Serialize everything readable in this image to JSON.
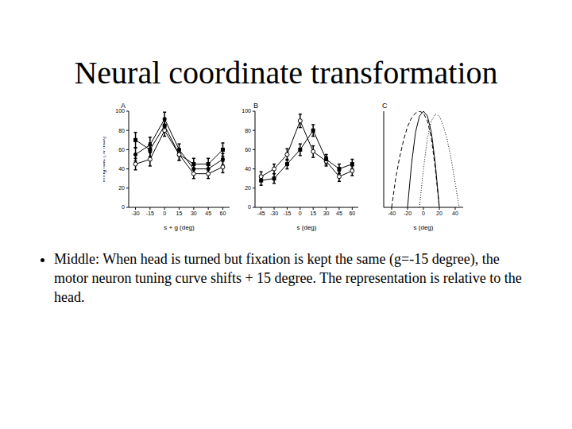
{
  "title": "Neural coordinate transformation",
  "chart_data": [
    {
      "type": "line",
      "title": "A",
      "x_label": "s + g (deg)",
      "y_label": "firing rate (% max)",
      "x": [
        -30,
        -15,
        0,
        15,
        30,
        45,
        60
      ],
      "xlim": [
        -37,
        67
      ],
      "xticks": [
        -30,
        -15,
        0,
        15,
        30,
        45,
        60
      ],
      "ylim": [
        0,
        100
      ],
      "yticks": [
        0,
        20,
        40,
        60,
        80,
        100
      ],
      "series": [
        {
          "color": "#000000",
          "marker": "square",
          "line_style": "solid",
          "values": [
            70,
            60,
            85,
            55,
            45,
            45,
            60
          ],
          "error": [
            8,
            7,
            6,
            6,
            6,
            6,
            7
          ]
        },
        {
          "color": "#000000",
          "marker": "circle",
          "line_style": "solid",
          "values": [
            55,
            65,
            92,
            60,
            40,
            40,
            50
          ],
          "error": [
            7,
            8,
            7,
            6,
            6,
            6,
            6
          ]
        },
        {
          "color": "#000000",
          "marker": "open_circle",
          "line_style": "solid",
          "values": [
            45,
            50,
            80,
            55,
            35,
            35,
            42
          ],
          "error": [
            6,
            7,
            6,
            6,
            5,
            5,
            6
          ]
        }
      ]
    },
    {
      "type": "line",
      "title": "B",
      "x_label": "s (deg)",
      "x": [
        -45,
        -30,
        -15,
        0,
        15,
        30,
        45,
        60
      ],
      "xlim": [
        -52,
        67
      ],
      "xticks": [
        -45,
        -30,
        -15,
        0,
        15,
        30,
        45,
        60
      ],
      "ylim": [
        0,
        100
      ],
      "yticks": [
        0,
        20,
        40,
        60,
        80,
        100
      ],
      "series": [
        {
          "color": "#000000",
          "marker": "open_circle",
          "line_style": "solid",
          "values": [
            32,
            40,
            55,
            90,
            58,
            48,
            32,
            38
          ],
          "error": [
            5,
            5,
            6,
            7,
            6,
            5,
            5,
            5
          ]
        },
        {
          "color": "#000000",
          "marker": "square",
          "line_style": "solid",
          "values": [
            28,
            30,
            45,
            60,
            80,
            50,
            40,
            45
          ],
          "error": [
            5,
            5,
            5,
            6,
            6,
            5,
            5,
            5
          ]
        }
      ]
    },
    {
      "type": "line",
      "title": "C",
      "x_label": "s (deg)",
      "xlim": [
        -50,
        50
      ],
      "xticks": [
        -40,
        -20,
        0,
        20,
        40
      ],
      "ylim": [
        0,
        100
      ],
      "yticks": [
        0,
        20,
        40,
        60,
        80,
        100
      ],
      "tick_labels": "x",
      "series": [
        {
          "color": "#000000",
          "marker": "none",
          "line_style": "dashed",
          "x": [
            -40,
            -35,
            -30,
            -25,
            -20,
            -15,
            -10,
            -5,
            0,
            5,
            10,
            15,
            20
          ],
          "values": [
            0,
            30,
            52,
            70,
            84,
            93,
            98,
            100,
            98,
            90,
            72,
            40,
            0
          ]
        },
        {
          "color": "#000000",
          "marker": "none",
          "line_style": "solid",
          "x": [
            -20,
            -15,
            -10,
            -5,
            0,
            5,
            10,
            15,
            20
          ],
          "values": [
            0,
            45,
            78,
            95,
            100,
            95,
            78,
            45,
            0
          ]
        },
        {
          "color": "#000000",
          "marker": "none",
          "line_style": "dotted",
          "x": [
            -5,
            0,
            5,
            10,
            15,
            20,
            25,
            30,
            35,
            40,
            45
          ],
          "values": [
            0,
            40,
            72,
            90,
            97,
            95,
            85,
            70,
            50,
            25,
            0
          ]
        }
      ]
    }
  ],
  "bullets": [
    "Middle: When head is turned but fixation is kept the same (g=-15 degree), the motor neuron tuning curve shifts + 15 degree. The representation is relative to the head."
  ]
}
